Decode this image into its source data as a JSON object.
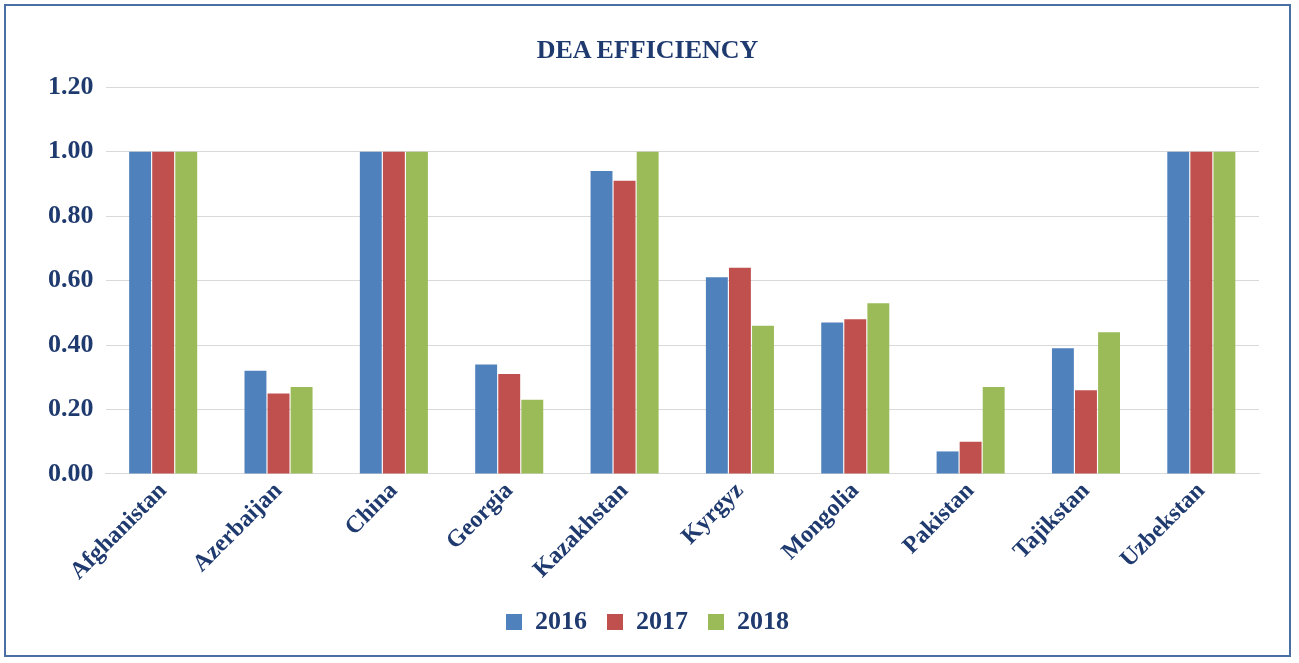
{
  "chart_data": {
    "type": "bar",
    "title": "DEA EFFICIENCY",
    "categories": [
      "Afghanistan",
      "Azerbaijan",
      "China",
      "Georgia",
      "Kazakhstan",
      "Kyrgyz",
      "Mongolia",
      "Pakistan",
      "Tajikstan",
      "Uzbekstan"
    ],
    "series": [
      {
        "name": "2016",
        "color": "#4f81bd",
        "values": [
          1.0,
          0.32,
          1.0,
          0.34,
          0.94,
          0.61,
          0.47,
          0.07,
          0.39,
          1.0
        ]
      },
      {
        "name": "2017",
        "color": "#c0504d",
        "values": [
          1.0,
          0.25,
          1.0,
          0.31,
          0.91,
          0.64,
          0.48,
          0.1,
          0.26,
          1.0
        ]
      },
      {
        "name": "2018",
        "color": "#9bbb59",
        "values": [
          1.0,
          0.27,
          1.0,
          0.23,
          1.0,
          0.46,
          0.53,
          0.27,
          0.44,
          1.0
        ]
      }
    ],
    "ylim": [
      0,
      1.2
    ],
    "yticks": [
      {
        "value": 0,
        "label": "0.00"
      },
      {
        "value": 0.2,
        "label": "0.20"
      },
      {
        "value": 0.4,
        "label": "0.40"
      },
      {
        "value": 0.6,
        "label": "0.60"
      },
      {
        "value": 0.8,
        "label": "0.80"
      },
      {
        "value": 1.0,
        "label": "1.00"
      },
      {
        "value": 1.2,
        "label": "1.20"
      }
    ],
    "grid": "y",
    "legend": "bottom"
  }
}
